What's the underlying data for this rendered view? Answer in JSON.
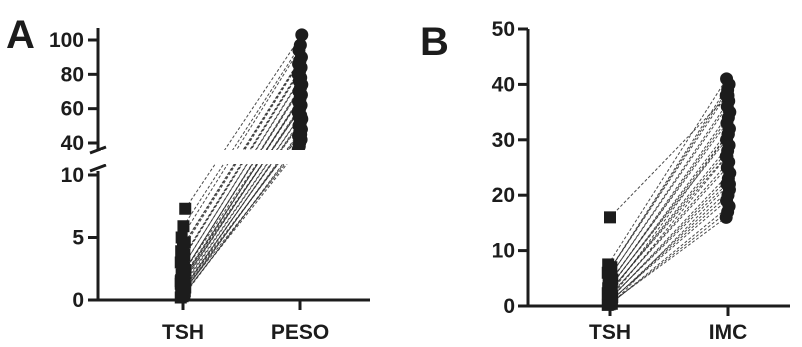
{
  "chart_data": [
    {
      "panel": "A",
      "type": "scatter",
      "categories": [
        "TSH",
        "PESO"
      ],
      "y_axis": {
        "broken": true,
        "lower_segment": {
          "ylim": [
            0,
            10
          ],
          "ticks": [
            "0",
            "5",
            "10"
          ]
        },
        "upper_segment": {
          "ylim": [
            40,
            100
          ],
          "ticks": [
            "40",
            "60",
            "80",
            "100"
          ]
        }
      },
      "markers": {
        "TSH": "square",
        "PESO": "circle"
      },
      "pairs": [
        [
          0.2,
          36
        ],
        [
          0.3,
          40
        ],
        [
          0.4,
          42
        ],
        [
          0.5,
          44
        ],
        [
          0.6,
          46
        ],
        [
          0.7,
          48
        ],
        [
          0.8,
          50
        ],
        [
          0.9,
          52
        ],
        [
          1.0,
          54
        ],
        [
          1.1,
          55
        ],
        [
          1.2,
          56
        ],
        [
          1.3,
          58
        ],
        [
          1.4,
          60
        ],
        [
          1.5,
          62
        ],
        [
          1.6,
          64
        ],
        [
          1.7,
          66
        ],
        [
          1.8,
          68
        ],
        [
          2.0,
          70
        ],
        [
          2.2,
          72
        ],
        [
          2.4,
          74
        ],
        [
          2.6,
          76
        ],
        [
          2.8,
          78
        ],
        [
          3.0,
          80
        ],
        [
          3.3,
          82
        ],
        [
          3.6,
          84
        ],
        [
          3.9,
          86
        ],
        [
          4.3,
          88
        ],
        [
          4.6,
          90
        ],
        [
          5.0,
          94
        ],
        [
          5.9,
          97
        ],
        [
          7.3,
          103
        ],
        [
          0.6,
          38
        ],
        [
          1.0,
          45
        ],
        [
          1.5,
          58
        ],
        [
          2.1,
          65
        ]
      ]
    },
    {
      "panel": "B",
      "type": "scatter",
      "categories": [
        "TSH",
        "IMC"
      ],
      "y_axis": {
        "ylim": [
          0,
          50
        ],
        "ticks": [
          "0",
          "10",
          "20",
          "30",
          "40",
          "50"
        ]
      },
      "markers": {
        "TSH": "square",
        "IMC": "circle"
      },
      "pairs": [
        [
          0.2,
          16
        ],
        [
          0.3,
          17
        ],
        [
          0.5,
          18
        ],
        [
          0.6,
          19
        ],
        [
          0.8,
          20
        ],
        [
          1.0,
          21
        ],
        [
          1.2,
          22
        ],
        [
          1.4,
          23
        ],
        [
          1.6,
          24
        ],
        [
          1.8,
          25
        ],
        [
          2.0,
          26
        ],
        [
          2.3,
          27
        ],
        [
          2.6,
          28
        ],
        [
          2.9,
          29
        ],
        [
          3.2,
          30
        ],
        [
          3.5,
          31
        ],
        [
          3.8,
          32
        ],
        [
          4.1,
          33
        ],
        [
          4.4,
          34
        ],
        [
          4.8,
          35
        ],
        [
          5.2,
          36
        ],
        [
          5.6,
          37
        ],
        [
          6.0,
          38
        ],
        [
          6.5,
          39
        ],
        [
          7.0,
          40
        ],
        [
          7.5,
          41
        ],
        [
          16.0,
          38
        ],
        [
          0.4,
          22
        ],
        [
          1.1,
          27
        ],
        [
          2.2,
          31
        ]
      ]
    }
  ]
}
